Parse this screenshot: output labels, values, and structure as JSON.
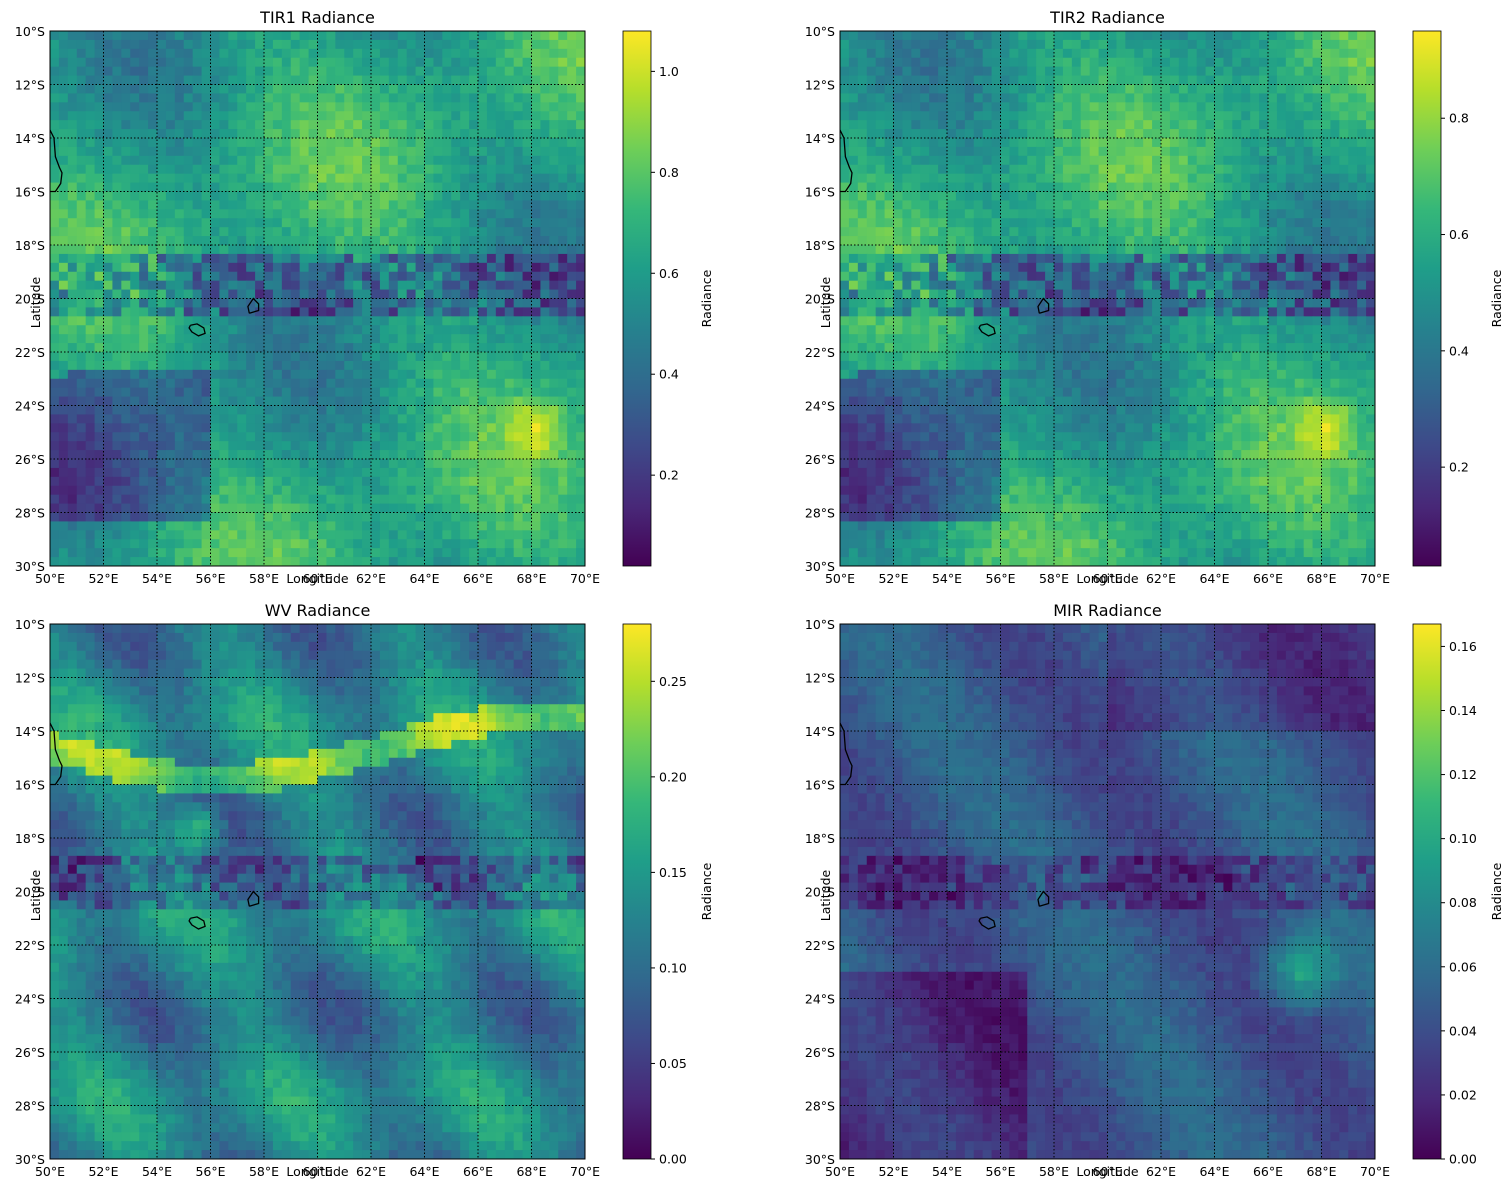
{
  "figure": {
    "panels": [
      {
        "title": "TIR1 Radiance",
        "xlabel": "Longitude",
        "ylabel": "Latitude",
        "colorbar": {
          "label": "Radiance",
          "min": 0.02,
          "max": 1.08,
          "ticks": [
            "0.2",
            "0.4",
            "0.6",
            "0.8",
            "1.0"
          ],
          "tick_values": [
            0.2,
            0.4,
            0.6,
            0.8,
            1.0
          ]
        },
        "field_variant": "tir"
      },
      {
        "title": "TIR2 Radiance",
        "xlabel": "Longitude",
        "ylabel": "Latitude",
        "colorbar": {
          "label": "Radiance",
          "min": 0.03,
          "max": 0.95,
          "ticks": [
            "0.2",
            "0.4",
            "0.6",
            "0.8"
          ],
          "tick_values": [
            0.2,
            0.4,
            0.6,
            0.8
          ]
        },
        "field_variant": "tir"
      },
      {
        "title": "WV Radiance",
        "xlabel": "Longitude",
        "ylabel": "Latitude",
        "colorbar": {
          "label": "Radiance",
          "min": 0.0,
          "max": 0.28,
          "ticks": [
            "0.00",
            "0.05",
            "0.10",
            "0.15",
            "0.20",
            "0.25"
          ],
          "tick_values": [
            0.0,
            0.05,
            0.1,
            0.15,
            0.2,
            0.25
          ]
        },
        "field_variant": "wv"
      },
      {
        "title": "MIR Radiance",
        "xlabel": "Longitude",
        "ylabel": "Latitude",
        "colorbar": {
          "label": "Radiance",
          "min": 0.0,
          "max": 0.167,
          "ticks": [
            "0.00",
            "0.02",
            "0.04",
            "0.06",
            "0.08",
            "0.10",
            "0.12",
            "0.14",
            "0.16"
          ],
          "tick_values": [
            0.0,
            0.02,
            0.04,
            0.06,
            0.08,
            0.1,
            0.12,
            0.14,
            0.16
          ]
        },
        "field_variant": "mir"
      }
    ],
    "lon_ticks": [
      "50°E",
      "52°E",
      "54°E",
      "56°E",
      "58°E",
      "60°E",
      "62°E",
      "64°E",
      "66°E",
      "68°E",
      "70°E"
    ],
    "lon_values": [
      50,
      52,
      54,
      56,
      58,
      60,
      62,
      64,
      66,
      68,
      70
    ],
    "lat_ticks": [
      "10°S",
      "12°S",
      "14°S",
      "16°S",
      "18°S",
      "20°S",
      "22°S",
      "24°S",
      "26°S",
      "28°S",
      "30°S"
    ],
    "lat_values": [
      -10,
      -12,
      -14,
      -16,
      -18,
      -20,
      -22,
      -24,
      -26,
      -28,
      -30
    ],
    "extent": {
      "lon_min": 50,
      "lon_max": 70,
      "lat_min": -30,
      "lat_max": -10
    },
    "colormap": "viridis",
    "gridline_style": "dotted black",
    "coastlines": [
      {
        "name": "Madagascar east coast",
        "points": [
          [
            50.0,
            -13.7
          ],
          [
            50.15,
            -14.0
          ],
          [
            50.2,
            -14.7
          ],
          [
            50.35,
            -15.1
          ],
          [
            50.45,
            -15.3
          ],
          [
            50.4,
            -15.7
          ],
          [
            50.2,
            -16.0
          ],
          [
            50.0,
            -16.0
          ]
        ]
      },
      {
        "name": "Réunion",
        "points": [
          [
            55.25,
            -21.0
          ],
          [
            55.5,
            -20.95
          ],
          [
            55.75,
            -21.1
          ],
          [
            55.8,
            -21.3
          ],
          [
            55.55,
            -21.4
          ],
          [
            55.3,
            -21.25
          ],
          [
            55.2,
            -21.1
          ],
          [
            55.25,
            -21.0
          ]
        ]
      },
      {
        "name": "Mauritius",
        "points": [
          [
            57.45,
            -20.55
          ],
          [
            57.8,
            -20.45
          ],
          [
            57.8,
            -20.2
          ],
          [
            57.6,
            -20.0
          ],
          [
            57.4,
            -20.3
          ],
          [
            57.45,
            -20.55
          ]
        ]
      }
    ]
  }
}
